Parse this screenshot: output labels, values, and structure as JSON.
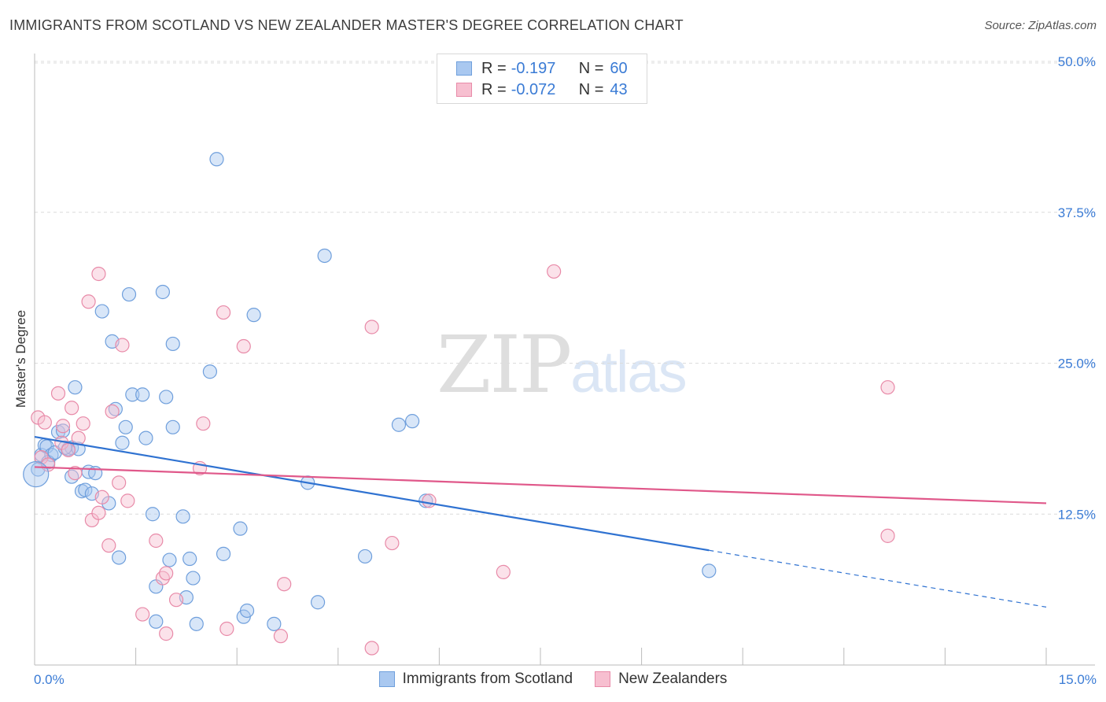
{
  "title": "IMMIGRANTS FROM SCOTLAND VS NEW ZEALANDER MASTER'S DEGREE CORRELATION CHART",
  "source": "Source: ZipAtlas.com",
  "watermark": {
    "zip": "ZIP",
    "atlas": "atlas"
  },
  "legend_top": [
    {
      "r_label": "R =",
      "r_value": "-0.197",
      "n_label": "N =",
      "n_value": "60",
      "color": "#a9c8f0",
      "border": "#6f9fdc"
    },
    {
      "r_label": "R =",
      "r_value": "-0.072",
      "n_label": "N =",
      "n_value": "43",
      "color": "#f7bfd0",
      "border": "#e88aa8"
    }
  ],
  "legend_bottom": [
    {
      "label": "Immigrants from Scotland",
      "color": "#a9c8f0",
      "border": "#6f9fdc"
    },
    {
      "label": "New Zealanders",
      "color": "#f7bfd0",
      "border": "#e88aa8"
    }
  ],
  "chart_data": {
    "type": "scatter",
    "title": "IMMIGRANTS FROM SCOTLAND VS NEW ZEALANDER MASTER'S DEGREE CORRELATION CHART",
    "xlabel": "",
    "ylabel": "Master's Degree",
    "xlim": [
      0,
      15
    ],
    "ylim": [
      0,
      50
    ],
    "x_tick_labels": [
      {
        "value": 0,
        "label": "0.0%"
      },
      {
        "value": 15,
        "label": "15.0%"
      }
    ],
    "y_tick_labels": [
      {
        "value": 12.5,
        "label": "12.5%"
      },
      {
        "value": 25,
        "label": "25.0%"
      },
      {
        "value": 37.5,
        "label": "37.5%"
      },
      {
        "value": 50,
        "label": "50.0%"
      }
    ],
    "grid": "horizontal dashed",
    "legend_position": "top-center",
    "series": [
      {
        "name": "Immigrants from Scotland",
        "color": "#6f9fdc",
        "fill": "#a9c8f0",
        "trend": {
          "x_start": 0,
          "y_start": 18.9,
          "x_end": 10.0,
          "y_end": 9.5,
          "dashed_to_x": 15,
          "dashed_to_y": 4.8,
          "color": "#2f72d1"
        },
        "points": [
          [
            0.05,
            16.2
          ],
          [
            0.1,
            17.4
          ],
          [
            0.15,
            18.2
          ],
          [
            0.18,
            18.1
          ],
          [
            0.25,
            17.4
          ],
          [
            0.2,
            16.8
          ],
          [
            0.35,
            19.3
          ],
          [
            0.42,
            19.4
          ],
          [
            0.5,
            17.9
          ],
          [
            0.55,
            18.0
          ],
          [
            0.6,
            23.0
          ],
          [
            0.65,
            17.9
          ],
          [
            0.55,
            15.6
          ],
          [
            0.7,
            14.4
          ],
          [
            0.75,
            14.5
          ],
          [
            0.8,
            16.0
          ],
          [
            0.85,
            14.2
          ],
          [
            1.0,
            29.3
          ],
          [
            1.15,
            26.8
          ],
          [
            1.2,
            21.2
          ],
          [
            1.1,
            13.4
          ],
          [
            1.3,
            18.4
          ],
          [
            1.35,
            19.7
          ],
          [
            1.4,
            30.7
          ],
          [
            1.45,
            22.4
          ],
          [
            1.6,
            22.4
          ],
          [
            1.65,
            18.8
          ],
          [
            1.25,
            8.9
          ],
          [
            1.75,
            12.5
          ],
          [
            1.8,
            6.5
          ],
          [
            1.9,
            30.9
          ],
          [
            1.95,
            22.2
          ],
          [
            2.0,
            8.7
          ],
          [
            2.05,
            19.7
          ],
          [
            2.05,
            26.6
          ],
          [
            2.2,
            12.3
          ],
          [
            2.25,
            5.6
          ],
          [
            2.3,
            8.8
          ],
          [
            2.35,
            7.2
          ],
          [
            2.4,
            3.4
          ],
          [
            2.6,
            24.3
          ],
          [
            2.7,
            41.9
          ],
          [
            2.8,
            9.2
          ],
          [
            3.05,
            11.3
          ],
          [
            3.1,
            4.0
          ],
          [
            3.15,
            4.5
          ],
          [
            3.25,
            29.0
          ],
          [
            3.55,
            3.4
          ],
          [
            4.05,
            15.1
          ],
          [
            4.2,
            5.2
          ],
          [
            4.3,
            33.9
          ],
          [
            4.9,
            9.0
          ],
          [
            5.4,
            19.9
          ],
          [
            5.6,
            20.2
          ],
          [
            5.8,
            13.6
          ],
          [
            10.0,
            7.8
          ],
          [
            1.8,
            3.6
          ],
          [
            0.3,
            17.6
          ],
          [
            0.9,
            15.9
          ],
          [
            0.45,
            18.0
          ]
        ]
      },
      {
        "name": "New Zealanders",
        "color": "#e88aa8",
        "fill": "#f7bfd0",
        "trend": {
          "x_start": 0,
          "y_start": 16.4,
          "x_end": 15,
          "y_end": 13.4,
          "color": "#e0588a"
        },
        "points": [
          [
            0.05,
            20.5
          ],
          [
            0.1,
            17.2
          ],
          [
            0.15,
            20.1
          ],
          [
            0.2,
            16.6
          ],
          [
            0.35,
            22.5
          ],
          [
            0.4,
            18.4
          ],
          [
            0.42,
            19.8
          ],
          [
            0.5,
            17.8
          ],
          [
            0.55,
            21.3
          ],
          [
            0.6,
            15.9
          ],
          [
            0.65,
            18.8
          ],
          [
            0.72,
            20.0
          ],
          [
            0.8,
            30.1
          ],
          [
            0.85,
            12.0
          ],
          [
            0.95,
            32.4
          ],
          [
            0.95,
            12.6
          ],
          [
            1.0,
            13.9
          ],
          [
            1.1,
            9.9
          ],
          [
            1.15,
            21.0
          ],
          [
            1.25,
            15.1
          ],
          [
            1.3,
            26.5
          ],
          [
            1.38,
            13.6
          ],
          [
            1.6,
            4.2
          ],
          [
            1.8,
            10.3
          ],
          [
            1.9,
            7.2
          ],
          [
            1.95,
            7.6
          ],
          [
            1.95,
            2.6
          ],
          [
            2.1,
            5.4
          ],
          [
            2.5,
            20.0
          ],
          [
            2.45,
            16.3
          ],
          [
            2.8,
            29.2
          ],
          [
            2.85,
            3.0
          ],
          [
            3.1,
            26.4
          ],
          [
            3.7,
            6.7
          ],
          [
            3.65,
            2.4
          ],
          [
            5.0,
            28.0
          ],
          [
            5.0,
            1.4
          ],
          [
            5.3,
            10.1
          ],
          [
            5.85,
            13.6
          ],
          [
            6.95,
            7.7
          ],
          [
            7.7,
            32.6
          ],
          [
            12.65,
            23.0
          ],
          [
            12.65,
            10.7
          ]
        ]
      }
    ]
  }
}
